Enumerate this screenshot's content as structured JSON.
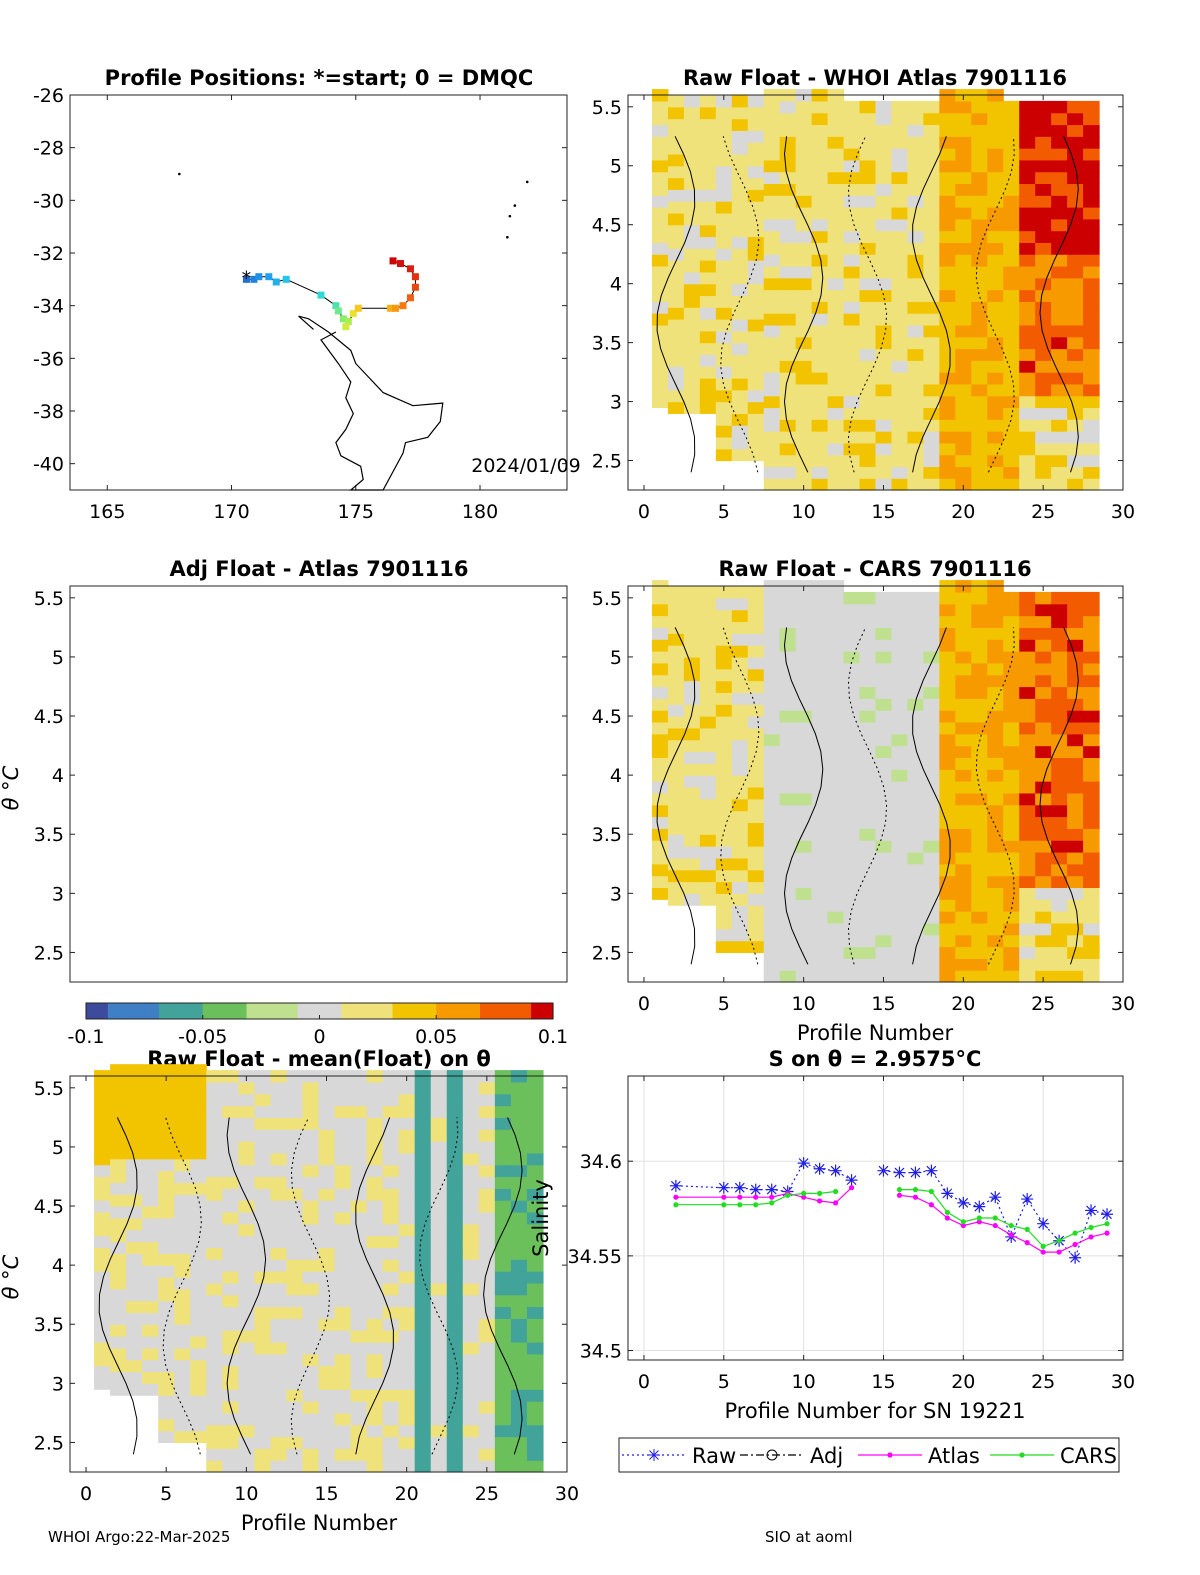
{
  "footer": {
    "left": "WHOI Argo:22-Mar-2025",
    "right": "SIO at aoml"
  },
  "colorbar": {
    "ticks": [
      "-0.1",
      "-0.05",
      "0",
      "0.05",
      "0.1"
    ],
    "colors": [
      "#3e4a9c",
      "#3f7fc4",
      "#41a39a",
      "#6cc05c",
      "#bfe08f",
      "#d8d8d8",
      "#f0e27a",
      "#f2c400",
      "#f79a00",
      "#f35b00",
      "#cc0000"
    ]
  },
  "chart_data": [
    {
      "type": "map",
      "title": "Profile Positions: *=start; 0 = DMQC",
      "xlim": [
        163.5,
        183.5
      ],
      "ylim": [
        -41,
        -26
      ],
      "xticks": [
        "165",
        "170",
        "175",
        "180"
      ],
      "yticks": [
        "-26",
        "-28",
        "-30",
        "-32",
        "-34",
        "-36",
        "-38",
        "-40"
      ],
      "annotation": "2024/01/09",
      "track": [
        {
          "lon": 170.6,
          "lat": -33.0
        },
        {
          "lon": 170.9,
          "lat": -33.0
        },
        {
          "lon": 171.1,
          "lat": -32.9
        },
        {
          "lon": 171.5,
          "lat": -32.9
        },
        {
          "lon": 171.8,
          "lat": -33.1
        },
        {
          "lon": 172.2,
          "lat": -33.0
        },
        {
          "lon": 173.6,
          "lat": -33.6
        },
        {
          "lon": 174.2,
          "lat": -34.0
        },
        {
          "lon": 174.3,
          "lat": -34.2
        },
        {
          "lon": 174.5,
          "lat": -34.5
        },
        {
          "lon": 174.7,
          "lat": -34.6
        },
        {
          "lon": 174.6,
          "lat": -34.8
        },
        {
          "lon": 174.9,
          "lat": -34.3
        },
        {
          "lon": 175.1,
          "lat": -34.1
        },
        {
          "lon": 176.4,
          "lat": -34.1
        },
        {
          "lon": 176.6,
          "lat": -34.1
        },
        {
          "lon": 176.9,
          "lat": -34.0
        },
        {
          "lon": 177.2,
          "lat": -33.7
        },
        {
          "lon": 177.4,
          "lat": -33.3
        },
        {
          "lon": 177.4,
          "lat": -32.9
        },
        {
          "lon": 177.2,
          "lat": -32.6
        },
        {
          "lon": 176.8,
          "lat": -32.4
        },
        {
          "lon": 176.5,
          "lat": -32.3
        }
      ]
    },
    {
      "type": "heatmap",
      "title": "Raw Float - WHOI Atlas  7901116",
      "xlim": [
        -1,
        30
      ],
      "ylim": [
        2.25,
        5.6
      ],
      "xticks": [
        "0",
        "5",
        "10",
        "15",
        "20",
        "25",
        "30"
      ],
      "yticks": [
        "2.5",
        "3",
        "3.5",
        "4",
        "4.5",
        "5",
        "5.5"
      ]
    },
    {
      "type": "heatmap",
      "title": "Adj Float - Atlas  7901116",
      "ylabel": "θ °C",
      "xlim": [
        -1,
        30
      ],
      "ylim": [
        2.25,
        5.6
      ],
      "yticks": [
        "2.5",
        "3",
        "3.5",
        "4",
        "4.5",
        "5",
        "5.5"
      ]
    },
    {
      "type": "heatmap",
      "title": "Raw Float - CARS  7901116",
      "xlabel": "Profile Number",
      "xlim": [
        -1,
        30
      ],
      "ylim": [
        2.25,
        5.6
      ],
      "xticks": [
        "0",
        "5",
        "10",
        "15",
        "20",
        "25",
        "30"
      ],
      "yticks": [
        "2.5",
        "3",
        "3.5",
        "4",
        "4.5",
        "5",
        "5.5"
      ]
    },
    {
      "type": "heatmap",
      "title": "Raw Float - mean(Float) on θ",
      "xlabel": "Profile Number",
      "ylabel": "θ °C",
      "xlim": [
        -1,
        30
      ],
      "ylim": [
        2.25,
        5.6
      ],
      "xticks": [
        "0",
        "5",
        "10",
        "15",
        "20",
        "25",
        "30"
      ],
      "yticks": [
        "2.5",
        "3",
        "3.5",
        "4",
        "4.5",
        "5",
        "5.5"
      ]
    },
    {
      "type": "line",
      "title": "S on θ = 2.9575°C",
      "xlabel": "Profile Number for SN 19221",
      "ylabel": "Salinity",
      "xlim": [
        -1,
        30
      ],
      "ylim": [
        34.495,
        34.645
      ],
      "xticks": [
        "0",
        "5",
        "10",
        "15",
        "20",
        "25",
        "30"
      ],
      "yticks": [
        "34.5",
        "34.55",
        "34.6"
      ],
      "series": [
        {
          "name": "Raw",
          "color": "#1f1fe6",
          "marker": "star",
          "dash": "dot",
          "x": [
            2,
            5,
            6,
            7,
            8,
            9,
            10,
            11,
            12,
            13,
            null,
            15,
            16,
            17,
            18,
            19,
            20,
            21,
            22,
            23,
            24,
            25,
            26,
            27,
            28,
            29
          ],
          "y": [
            34.587,
            34.586,
            34.586,
            34.585,
            34.585,
            34.584,
            34.599,
            34.596,
            34.595,
            34.59,
            null,
            34.595,
            34.594,
            34.594,
            34.595,
            34.583,
            34.578,
            34.576,
            34.581,
            34.56,
            34.58,
            34.567,
            34.558,
            34.549,
            34.574,
            34.572
          ]
        },
        {
          "name": "Adj",
          "color": "#000000",
          "marker": "circle",
          "dash": "dashdot",
          "x": [],
          "y": []
        },
        {
          "name": "Atlas",
          "color": "#ff00ff",
          "marker": "dot",
          "dash": "solid",
          "x": [
            2,
            5,
            6,
            7,
            8,
            9,
            10,
            11,
            12,
            13,
            null,
            16,
            17,
            18,
            19,
            20,
            21,
            22,
            23,
            24,
            25,
            26,
            27,
            28,
            29
          ],
          "y": [
            34.581,
            34.581,
            34.581,
            34.581,
            34.581,
            34.583,
            34.581,
            34.579,
            34.578,
            34.586,
            null,
            34.582,
            34.581,
            34.577,
            34.57,
            34.566,
            34.568,
            34.566,
            34.561,
            34.557,
            34.552,
            34.552,
            34.556,
            34.56,
            34.562
          ]
        },
        {
          "name": "CARS",
          "color": "#22dd22",
          "marker": "dot",
          "dash": "solid",
          "x": [
            2,
            5,
            6,
            7,
            8,
            9,
            10,
            11,
            12,
            null,
            16,
            17,
            18,
            19,
            20,
            21,
            22,
            23,
            24,
            25,
            26,
            27,
            28,
            29
          ],
          "y": [
            34.577,
            34.577,
            34.577,
            34.577,
            34.578,
            34.582,
            34.583,
            34.583,
            34.584,
            null,
            34.585,
            34.585,
            34.584,
            34.573,
            34.568,
            34.57,
            34.57,
            34.566,
            34.564,
            34.555,
            34.558,
            34.562,
            34.565,
            34.567
          ]
        }
      ]
    }
  ]
}
